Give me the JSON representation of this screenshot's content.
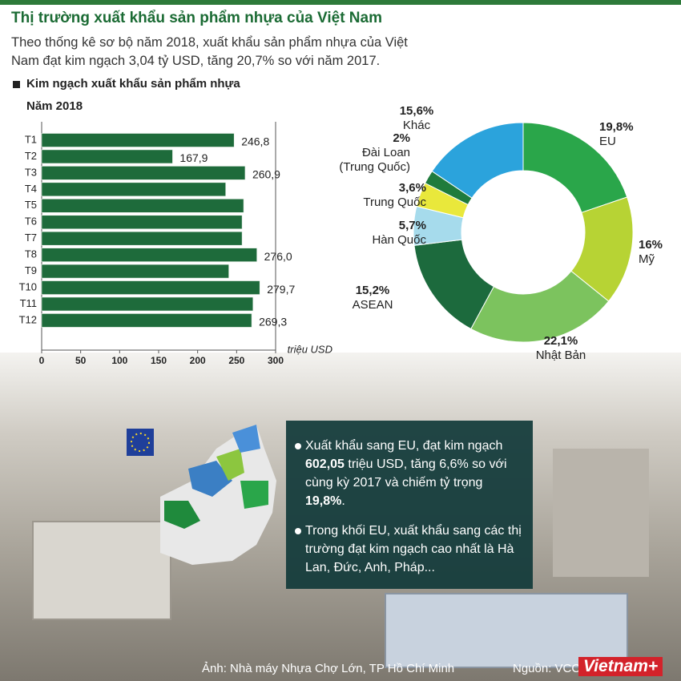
{
  "header": {
    "title": "Thị trường xuất khẩu sản phẩm nhựa của Việt Nam",
    "description": "Theo thống kê sơ bộ năm 2018, xuất khẩu sản phẩm nhựa của Việt Nam đạt kim ngạch 3,04 tỷ USD, tăng 20,7% so với năm 2017."
  },
  "chart_data": [
    {
      "type": "bar",
      "orientation": "horizontal",
      "title": "Kim ngạch xuất khẩu sản phẩm nhựa",
      "subtitle": "Năm 2018",
      "categories": [
        "T1",
        "T2",
        "T3",
        "T4",
        "T5",
        "T6",
        "T7",
        "T8",
        "T9",
        "T10",
        "T11",
        "T12"
      ],
      "values": [
        246.8,
        167.9,
        260.9,
        236,
        259,
        257,
        257,
        276.0,
        240,
        279.7,
        271,
        269.3
      ],
      "value_labels": [
        "246,8",
        "167,9",
        "260,9",
        null,
        null,
        null,
        null,
        "276,0",
        null,
        "279,7",
        null,
        "269,3"
      ],
      "color": "#1e6b3b",
      "xlim": [
        0,
        300
      ],
      "xticks": [
        0,
        50,
        100,
        150,
        200,
        250,
        300
      ],
      "xlabel": "triệu USD"
    },
    {
      "type": "pie",
      "donut": true,
      "categories": [
        "EU",
        "Mỹ",
        "Nhật Bản",
        "ASEAN",
        "Hàn Quốc",
        "Trung Quốc",
        "Đài Loan\n(Trung Quốc)",
        "Khác"
      ],
      "values": [
        19.8,
        16,
        22.1,
        15.2,
        5.7,
        3.6,
        2,
        15.6
      ],
      "value_labels": [
        "19,8%",
        "16%",
        "22,1%",
        "15,2%",
        "5,7%",
        "3,6%",
        "2%",
        "15,6%"
      ],
      "colors": [
        "#2aa64a",
        "#b7d334",
        "#7cc35e",
        "#1c6a3d",
        "#a6dbec",
        "#e9e83b",
        "#1f7b3c",
        "#2ba3dc"
      ]
    }
  ],
  "info": {
    "bullets": [
      {
        "segments": [
          {
            "text": "Xuất khẩu sang EU, đạt kim ngạch ",
            "bold": false
          },
          {
            "text": "602,05",
            "bold": true
          },
          {
            "text": " triệu USD, tăng 6,6% so với cùng kỳ 2017 và chiếm tỷ trọng ",
            "bold": false
          },
          {
            "text": "19,8%",
            "bold": true
          },
          {
            "text": ".",
            "bold": false
          }
        ]
      },
      {
        "segments": [
          {
            "text": "Trong khối EU, xuất khẩu sang các thị trường đạt kim ngạch cao nhất là Hà Lan, Đức, Anh, Pháp...",
            "bold": false
          }
        ]
      }
    ]
  },
  "footer": {
    "photo_credit": "Ảnh: Nhà máy Nhựa Chợ Lớn, TP Hồ Chí Minh",
    "source": "Nguồn: VCCI",
    "logo": "Vietnam+"
  }
}
